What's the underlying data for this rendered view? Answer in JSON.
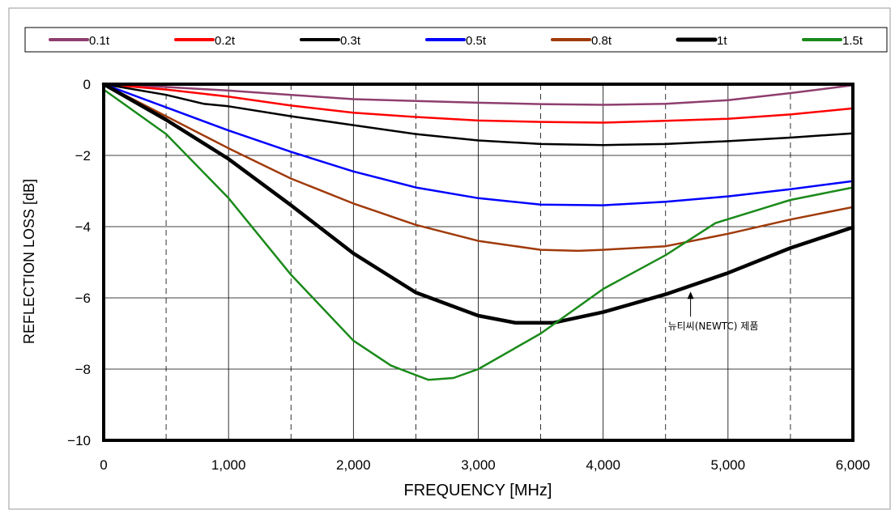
{
  "chart_data": {
    "type": "line",
    "title": "",
    "xlabel": "FREQUENCY [MHz]",
    "ylabel": "REFLECTION LOSS [dB]",
    "xlim": [
      0,
      6000
    ],
    "ylim": [
      -10,
      0
    ],
    "x_ticks": [
      0,
      1000,
      2000,
      3000,
      4000,
      5000,
      6000
    ],
    "x_tick_labels": [
      "0",
      "1,000",
      "2,000",
      "3,000",
      "4,000",
      "5,000",
      "6,000"
    ],
    "y_ticks": [
      0,
      -2,
      -4,
      -6,
      -8,
      -10
    ],
    "y_tick_labels": [
      "0",
      "−2",
      "−4",
      "−6",
      "−8",
      "−10"
    ],
    "grid": {
      "horizontal_solid": [
        -2,
        -4,
        -6,
        -8
      ],
      "vertical_solid": [
        1000,
        2000,
        3000,
        4000,
        5000
      ],
      "vertical_dashed": [
        500,
        1500,
        2500,
        3500,
        4500,
        5500
      ]
    },
    "legend_position": "top",
    "series": [
      {
        "name": "0.1t",
        "color": "#8e3e6e",
        "points": [
          [
            0,
            0
          ],
          [
            500,
            -0.08
          ],
          [
            1000,
            -0.18
          ],
          [
            1500,
            -0.3
          ],
          [
            2000,
            -0.42
          ],
          [
            2500,
            -0.47
          ],
          [
            3000,
            -0.52
          ],
          [
            3500,
            -0.56
          ],
          [
            4000,
            -0.58
          ],
          [
            4500,
            -0.55
          ],
          [
            5000,
            -0.45
          ],
          [
            5500,
            -0.25
          ],
          [
            6000,
            -0.03
          ]
        ]
      },
      {
        "name": "0.2t",
        "color": "#ff0000",
        "points": [
          [
            0,
            0
          ],
          [
            500,
            -0.15
          ],
          [
            1000,
            -0.35
          ],
          [
            1500,
            -0.6
          ],
          [
            2000,
            -0.8
          ],
          [
            2500,
            -0.92
          ],
          [
            3000,
            -1.02
          ],
          [
            3500,
            -1.06
          ],
          [
            4000,
            -1.08
          ],
          [
            4500,
            -1.03
          ],
          [
            5000,
            -0.97
          ],
          [
            5500,
            -0.85
          ],
          [
            6000,
            -0.68
          ]
        ]
      },
      {
        "name": "0.3t",
        "color": "#000000",
        "points": [
          [
            0,
            0
          ],
          [
            500,
            -0.3
          ],
          [
            800,
            -0.55
          ],
          [
            1000,
            -0.62
          ],
          [
            1500,
            -0.9
          ],
          [
            2000,
            -1.15
          ],
          [
            2500,
            -1.4
          ],
          [
            3000,
            -1.58
          ],
          [
            3500,
            -1.68
          ],
          [
            4000,
            -1.71
          ],
          [
            4500,
            -1.68
          ],
          [
            5000,
            -1.6
          ],
          [
            5500,
            -1.5
          ],
          [
            6000,
            -1.38
          ]
        ]
      },
      {
        "name": "0.5t",
        "color": "#0000ff",
        "points": [
          [
            0,
            0
          ],
          [
            500,
            -0.65
          ],
          [
            1000,
            -1.3
          ],
          [
            1500,
            -1.9
          ],
          [
            2000,
            -2.45
          ],
          [
            2500,
            -2.9
          ],
          [
            3000,
            -3.2
          ],
          [
            3500,
            -3.38
          ],
          [
            4000,
            -3.4
          ],
          [
            4500,
            -3.3
          ],
          [
            5000,
            -3.15
          ],
          [
            5500,
            -2.95
          ],
          [
            6000,
            -2.72
          ]
        ]
      },
      {
        "name": "0.8t",
        "color": "#a03a0a",
        "points": [
          [
            0,
            0
          ],
          [
            500,
            -0.9
          ],
          [
            1000,
            -1.8
          ],
          [
            1500,
            -2.65
          ],
          [
            2000,
            -3.35
          ],
          [
            2500,
            -3.95
          ],
          [
            3000,
            -4.4
          ],
          [
            3500,
            -4.65
          ],
          [
            3800,
            -4.68
          ],
          [
            4000,
            -4.65
          ],
          [
            4500,
            -4.55
          ],
          [
            5000,
            -4.2
          ],
          [
            5500,
            -3.8
          ],
          [
            6000,
            -3.45
          ]
        ]
      },
      {
        "name": "1t",
        "color": "#000000",
        "points": [
          [
            0,
            0
          ],
          [
            500,
            -1.0
          ],
          [
            1000,
            -2.1
          ],
          [
            1500,
            -3.4
          ],
          [
            2000,
            -4.75
          ],
          [
            2500,
            -5.85
          ],
          [
            3000,
            -6.5
          ],
          [
            3300,
            -6.7
          ],
          [
            3600,
            -6.7
          ],
          [
            4000,
            -6.4
          ],
          [
            4500,
            -5.9
          ],
          [
            5000,
            -5.3
          ],
          [
            5500,
            -4.6
          ],
          [
            6000,
            -4.02
          ]
        ]
      },
      {
        "name": "1.5t",
        "color": "#1a8a1a",
        "points": [
          [
            0,
            -0.15
          ],
          [
            500,
            -1.4
          ],
          [
            1000,
            -3.2
          ],
          [
            1500,
            -5.35
          ],
          [
            2000,
            -7.2
          ],
          [
            2300,
            -7.9
          ],
          [
            2600,
            -8.3
          ],
          [
            2800,
            -8.25
          ],
          [
            3000,
            -8.0
          ],
          [
            3500,
            -7.0
          ],
          [
            4000,
            -5.75
          ],
          [
            4500,
            -4.8
          ],
          [
            4900,
            -3.9
          ],
          [
            5500,
            -3.25
          ],
          [
            6000,
            -2.9
          ]
        ]
      }
    ],
    "annotation": {
      "text": "뉴티씨(NEWTC) 제품",
      "target": [
        4700,
        -5.8
      ]
    }
  }
}
